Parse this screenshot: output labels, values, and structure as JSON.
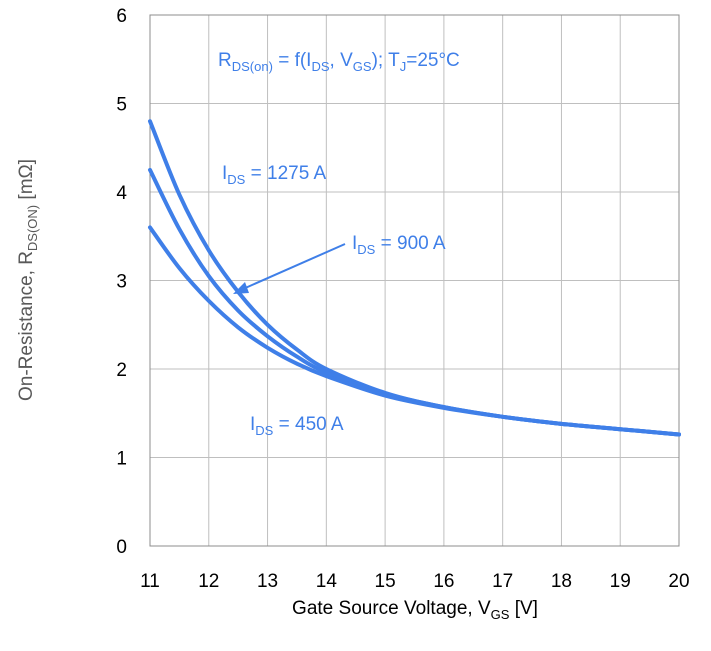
{
  "chart_data": {
    "type": "line",
    "title": {
      "prefix": "R",
      "sub": "DS(on)",
      "rest1": " = f(I",
      "sub2": "DS",
      "rest2": ", V",
      "sub3": "GS",
      "rest3": "); T",
      "sub4": "J",
      "rest4": "=25°C"
    },
    "xlabel": {
      "prefix": "Gate Source Voltage, V",
      "sub": "GS",
      "suffix": " [V]"
    },
    "ylabel": {
      "prefix": "On-Resistance, R",
      "sub": "DS(ON)",
      "suffix": " [mΩ]"
    },
    "xlim": [
      11,
      20
    ],
    "ylim": [
      0,
      6
    ],
    "x_ticks": [
      "11",
      "12",
      "13",
      "14",
      "15",
      "16",
      "17",
      "18",
      "19",
      "20"
    ],
    "y_ticks": [
      "0",
      "1",
      "2",
      "3",
      "4",
      "5",
      "6"
    ],
    "grid": true,
    "color": "#3f7fe8",
    "series": [
      {
        "name": "I_DS = 1275 A",
        "x": [
          11,
          11.5,
          12,
          12.5,
          13,
          13.5,
          14,
          15,
          16,
          17,
          18,
          19,
          20
        ],
        "y": [
          4.8,
          3.97,
          3.34,
          2.87,
          2.5,
          2.22,
          2.0,
          1.73,
          1.57,
          1.46,
          1.38,
          1.32,
          1.26
        ]
      },
      {
        "name": "I_DS = 900 A",
        "x": [
          11,
          11.5,
          12,
          12.5,
          13,
          13.5,
          14,
          15,
          16,
          17,
          18,
          19,
          20
        ],
        "y": [
          4.25,
          3.58,
          3.05,
          2.66,
          2.37,
          2.14,
          1.96,
          1.72,
          1.57,
          1.46,
          1.38,
          1.32,
          1.26
        ]
      },
      {
        "name": "I_DS = 450 A",
        "x": [
          11,
          11.5,
          12,
          12.5,
          13,
          13.5,
          14,
          15,
          16,
          17,
          18,
          19,
          20
        ],
        "y": [
          3.6,
          3.14,
          2.77,
          2.47,
          2.24,
          2.06,
          1.92,
          1.7,
          1.56,
          1.46,
          1.38,
          1.32,
          1.26
        ]
      }
    ],
    "annotations": [
      {
        "prefix": "I",
        "sub": "DS",
        "suffix": " = 1275 A"
      },
      {
        "prefix": "I",
        "sub": "DS",
        "suffix": " = 900 A"
      },
      {
        "prefix": "I",
        "sub": "DS",
        "suffix": " = 450 A"
      }
    ]
  }
}
